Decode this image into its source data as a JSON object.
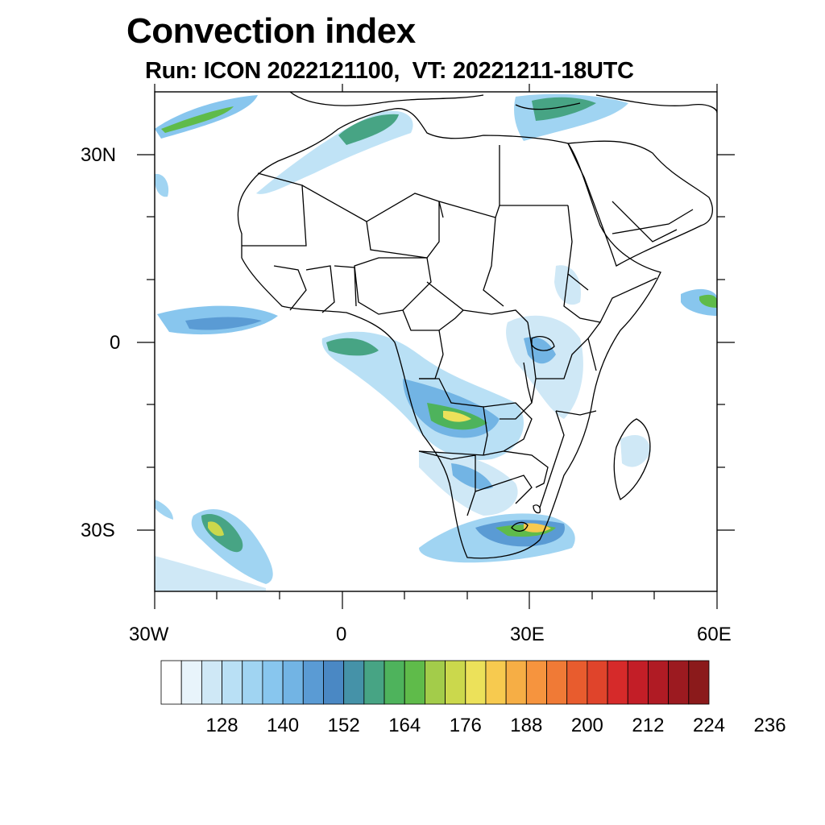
{
  "title": "Convection index",
  "subtitle": "Run: ICON 2022121100,  VT: 20221211-18UTC",
  "axes": {
    "lat_labels": [
      "30N",
      "0",
      "30S"
    ],
    "lon_labels": [
      "30W",
      "0",
      "30E",
      "60E"
    ]
  },
  "colorbar": {
    "colors": [
      "#ffffff",
      "#e8f4fb",
      "#cfe8f6",
      "#b9e0f5",
      "#a0d4f2",
      "#88c6ee",
      "#72b4e4",
      "#5a9bd4",
      "#4a88c4",
      "#4592a8",
      "#47a484",
      "#4eb35c",
      "#5fbb4a",
      "#a3cc4a",
      "#cbd84c",
      "#ece15a",
      "#f7ca4f",
      "#f6ae45",
      "#f6943e",
      "#f07a36",
      "#e85c2e",
      "#e0442b",
      "#d62a2a",
      "#c31e27",
      "#b01b24",
      "#9c1a20",
      "#8b1a1b"
    ],
    "tick_labels": [
      "128",
      "140",
      "152",
      "164",
      "176",
      "188",
      "200",
      "212",
      "224",
      "236"
    ]
  }
}
